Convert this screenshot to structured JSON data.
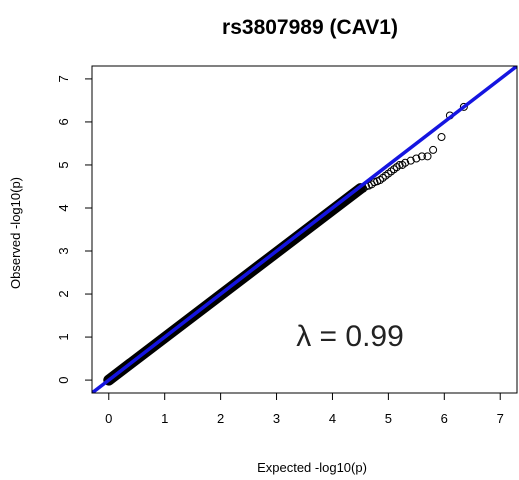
{
  "chart_data": {
    "type": "scatter",
    "title": "rs3807989 (CAV1)",
    "xlabel": "Expected -log10(p)",
    "ylabel": "Observed -log10(p)",
    "xlim": [
      -0.3,
      7.3
    ],
    "ylim": [
      -0.3,
      7.3
    ],
    "x_ticks": [
      0,
      1,
      2,
      3,
      4,
      5,
      6,
      7
    ],
    "y_ticks": [
      0,
      1,
      2,
      3,
      4,
      5,
      6,
      7
    ],
    "grid": false,
    "annotation": "λ = 0.99",
    "reference_line": {
      "slope": 1,
      "intercept": 0,
      "color": "#1515e0"
    },
    "point_color": "#000000",
    "dense_band": {
      "x_from": 0,
      "x_to": 4.5,
      "y_from": 0,
      "y_to": 4.45
    },
    "points": [
      {
        "x": 4.55,
        "y": 4.45
      },
      {
        "x": 4.6,
        "y": 4.5
      },
      {
        "x": 4.65,
        "y": 4.52
      },
      {
        "x": 4.7,
        "y": 4.55
      },
      {
        "x": 4.75,
        "y": 4.6
      },
      {
        "x": 4.8,
        "y": 4.62
      },
      {
        "x": 4.85,
        "y": 4.65
      },
      {
        "x": 4.9,
        "y": 4.7
      },
      {
        "x": 4.95,
        "y": 4.75
      },
      {
        "x": 5.0,
        "y": 4.8
      },
      {
        "x": 5.05,
        "y": 4.85
      },
      {
        "x": 5.1,
        "y": 4.9
      },
      {
        "x": 5.15,
        "y": 4.95
      },
      {
        "x": 5.2,
        "y": 5.0
      },
      {
        "x": 5.25,
        "y": 5.0
      },
      {
        "x": 5.3,
        "y": 5.05
      },
      {
        "x": 5.4,
        "y": 5.1
      },
      {
        "x": 5.5,
        "y": 5.15
      },
      {
        "x": 5.6,
        "y": 5.2
      },
      {
        "x": 5.7,
        "y": 5.2
      },
      {
        "x": 5.8,
        "y": 5.35
      },
      {
        "x": 5.95,
        "y": 5.65
      },
      {
        "x": 6.1,
        "y": 6.15
      },
      {
        "x": 6.35,
        "y": 6.35
      }
    ]
  }
}
